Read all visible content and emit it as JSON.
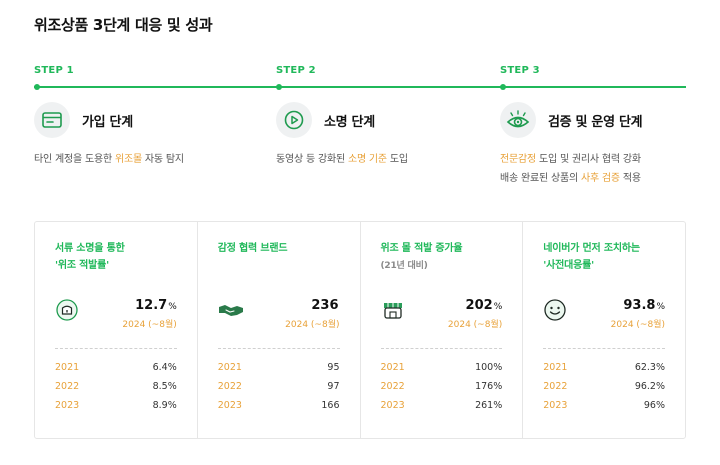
{
  "title": "위조상품 3단계 대응 및 성과",
  "colors": {
    "accent": "#20b85a",
    "highlight": "#e8a23a"
  },
  "steps": [
    {
      "label": "STEP 1",
      "icon": "browser-window-icon",
      "title": "가입 단계",
      "desc": [
        {
          "pre": "타인 계정을 도용한 ",
          "hl": "위조몰",
          "post": " 자동 탐지"
        }
      ]
    },
    {
      "label": "STEP 2",
      "icon": "play-circle-icon",
      "title": "소명 단계",
      "desc": [
        {
          "pre": "동영상 등 강화된 ",
          "hl": "소명 기준",
          "post": " 도입"
        }
      ]
    },
    {
      "label": "STEP 3",
      "icon": "eye-icon",
      "title": "검증 및 운영 단계",
      "desc": [
        {
          "pre": "",
          "hl": "전문감정",
          "post": " 도입 및 권리사 협력 강화"
        },
        {
          "pre": "배송 완료된 상품의 ",
          "hl": "사후 검증",
          "post": " 적용"
        }
      ]
    }
  ],
  "cards": [
    {
      "title": "서류 소명을 통한\n'위조 적발률'",
      "sub": "",
      "icon": "lock-icon",
      "value": "12.7",
      "unit": "%",
      "period": "2024 (~8월)",
      "rows": [
        {
          "year": "2021",
          "value": "6.4%"
        },
        {
          "year": "2022",
          "value": "8.5%"
        },
        {
          "year": "2023",
          "value": "8.9%"
        }
      ]
    },
    {
      "title": "감정 협력 브랜드",
      "sub": "",
      "icon": "handshake-icon",
      "value": "236",
      "unit": "",
      "period": "2024 (~8월)",
      "rows": [
        {
          "year": "2021",
          "value": "95"
        },
        {
          "year": "2022",
          "value": "97"
        },
        {
          "year": "2023",
          "value": "166"
        }
      ]
    },
    {
      "title": "위조 몰 적발 증가율",
      "sub": "(21년 대비)",
      "icon": "store-icon",
      "value": "202",
      "unit": "%",
      "period": "2024 (~8월)",
      "rows": [
        {
          "year": "2021",
          "value": "100%"
        },
        {
          "year": "2022",
          "value": "176%"
        },
        {
          "year": "2023",
          "value": "261%"
        }
      ]
    },
    {
      "title": "네이버가 먼저 조치하는\n'사전대응률'",
      "sub": "",
      "icon": "smile-icon",
      "value": "93.8",
      "unit": "%",
      "period": "2024 (~8월)",
      "rows": [
        {
          "year": "2021",
          "value": "62.3%"
        },
        {
          "year": "2022",
          "value": "96.2%"
        },
        {
          "year": "2023",
          "value": "96%"
        }
      ]
    }
  ]
}
